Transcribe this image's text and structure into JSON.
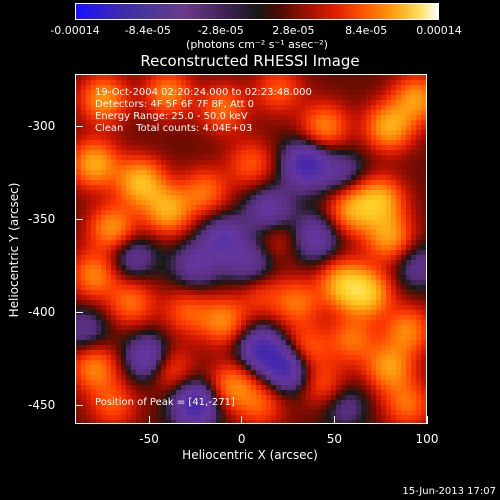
{
  "chart_data": {
    "type": "heatmap",
    "title": "Reconstructed RHESSI Image",
    "xlabel": "Heliocentric X (arcsec)",
    "ylabel": "Heliocentric Y (arcsec)",
    "xlim": [
      -90,
      100
    ],
    "ylim": [
      -460,
      -272
    ],
    "xticks": [
      "-50",
      "0",
      "50",
      "100"
    ],
    "xtick_values": [
      -50,
      0,
      50,
      100
    ],
    "yticks": [
      "-300",
      "-350",
      "-400",
      "-450"
    ],
    "ytick_values": [
      -300,
      -350,
      -400,
      -450
    ],
    "colorbar": {
      "tick_labels": [
        "-0.00014",
        "-8.4e-05",
        "-2.8e-05",
        "2.8e-05",
        "8.4e-05",
        "0.00014"
      ],
      "tick_values": [
        -0.00014,
        -8.4e-05,
        -2.8e-05,
        2.8e-05,
        8.4e-05,
        0.00014
      ],
      "range": [
        -0.00014,
        0.00014
      ],
      "unit_label": "(photons cm⁻² s⁻¹ asec⁻²)"
    },
    "annotations": {
      "time_range": "19-Oct-2004 02:20:24.000 to 02:23:48.000",
      "detectors": "Detectors: 4F 5F 6F 7F 8F, Att 0",
      "energy_range": "Energy Range: 25.0 - 50.0 keV",
      "algorithm": "Clean    Total counts: 4.04E+03",
      "peak": "Position of Peak = [41,-271]"
    },
    "timestamp": "15-Jun-2013 17:07",
    "blobs": [
      {
        "x": -75,
        "y": -285,
        "v": 0.8
      },
      {
        "x": -40,
        "y": -282,
        "v": 0.7
      },
      {
        "x": -10,
        "y": -290,
        "v": 0.6
      },
      {
        "x": 20,
        "y": -280,
        "v": 0.5
      },
      {
        "x": 45,
        "y": -300,
        "v": 0.7
      },
      {
        "x": 80,
        "y": -300,
        "v": 0.9
      },
      {
        "x": 95,
        "y": -285,
        "v": 0.8
      },
      {
        "x": -80,
        "y": -320,
        "v": 0.9
      },
      {
        "x": -55,
        "y": -330,
        "v": 1.0
      },
      {
        "x": -40,
        "y": -345,
        "v": 0.9
      },
      {
        "x": -70,
        "y": -355,
        "v": 0.8
      },
      {
        "x": -20,
        "y": -335,
        "v": 0.6
      },
      {
        "x": 5,
        "y": -320,
        "v": 0.5
      },
      {
        "x": -80,
        "y": -380,
        "v": 0.7
      },
      {
        "x": -60,
        "y": -395,
        "v": 0.6
      },
      {
        "x": -30,
        "y": -400,
        "v": 0.5
      },
      {
        "x": -10,
        "y": -405,
        "v": 0.7
      },
      {
        "x": 10,
        "y": -390,
        "v": 0.4
      },
      {
        "x": 30,
        "y": -395,
        "v": 0.6
      },
      {
        "x": 55,
        "y": -385,
        "v": 0.9
      },
      {
        "x": 68,
        "y": -390,
        "v": 1.0
      },
      {
        "x": 80,
        "y": -360,
        "v": 0.8
      },
      {
        "x": 60,
        "y": -345,
        "v": 0.8
      },
      {
        "x": 75,
        "y": -340,
        "v": 0.9
      },
      {
        "x": 90,
        "y": -410,
        "v": 0.7
      },
      {
        "x": 80,
        "y": -430,
        "v": 0.8
      },
      {
        "x": 60,
        "y": -415,
        "v": 0.6
      },
      {
        "x": 45,
        "y": -440,
        "v": 0.5
      },
      {
        "x": 35,
        "y": -420,
        "v": 0.6
      },
      {
        "x": -5,
        "y": -440,
        "v": 0.7
      },
      {
        "x": -40,
        "y": -430,
        "v": 0.6
      },
      {
        "x": -80,
        "y": -430,
        "v": 0.7
      },
      {
        "x": -70,
        "y": -450,
        "v": 0.5
      },
      {
        "x": 10,
        "y": -450,
        "v": 0.5
      },
      {
        "x": 90,
        "y": -450,
        "v": 0.6
      },
      {
        "x": 20,
        "y": -360,
        "v": 0.3
      },
      {
        "x": 35,
        "y": -320,
        "v": -0.9
      },
      {
        "x": 15,
        "y": -345,
        "v": -0.6
      },
      {
        "x": -10,
        "y": -360,
        "v": -0.6
      },
      {
        "x": 40,
        "y": -360,
        "v": -0.6
      },
      {
        "x": 10,
        "y": -420,
        "v": -0.8
      },
      {
        "x": -50,
        "y": -425,
        "v": -0.8
      },
      {
        "x": -25,
        "y": -450,
        "v": -0.9
      },
      {
        "x": 25,
        "y": -430,
        "v": -0.9
      },
      {
        "x": -60,
        "y": -370,
        "v": -0.5
      },
      {
        "x": 5,
        "y": -375,
        "v": -0.5
      },
      {
        "x": -25,
        "y": -375,
        "v": -0.5
      },
      {
        "x": 55,
        "y": -450,
        "v": -0.4
      },
      {
        "x": -85,
        "y": -410,
        "v": -0.4
      },
      {
        "x": 95,
        "y": -375,
        "v": -0.4
      },
      {
        "x": 55,
        "y": -325,
        "v": -0.4
      }
    ]
  }
}
